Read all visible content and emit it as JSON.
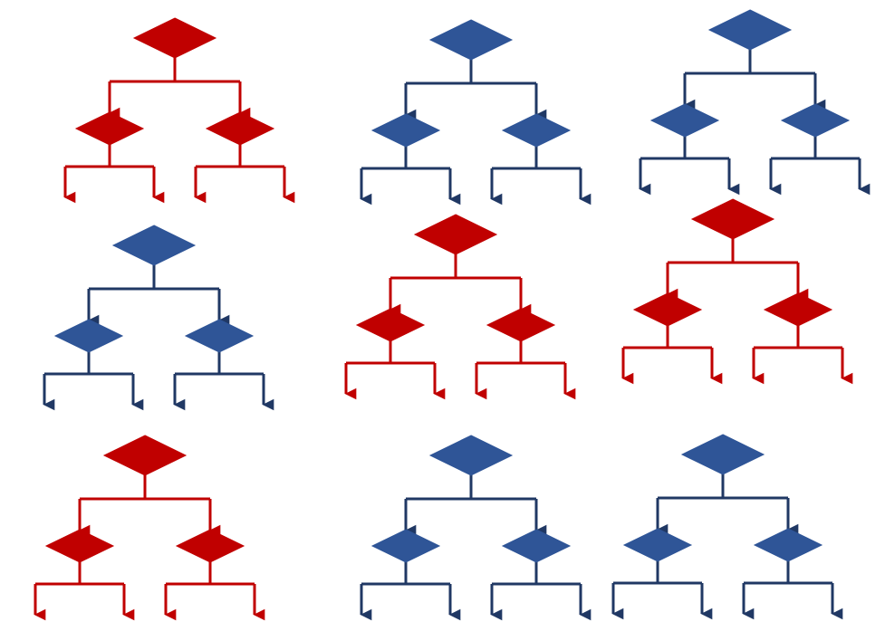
{
  "palette": {
    "red_fill": "#C00000",
    "red_line": "#C00000",
    "blue_fill": "#2F5597",
    "blue_line": "#203864"
  },
  "trees": [
    {
      "id": "tree-1",
      "color": "red"
    },
    {
      "id": "tree-2",
      "color": "blue"
    },
    {
      "id": "tree-3",
      "color": "blue"
    },
    {
      "id": "tree-4",
      "color": "blue"
    },
    {
      "id": "tree-5",
      "color": "red"
    },
    {
      "id": "tree-6",
      "color": "red"
    },
    {
      "id": "tree-7",
      "color": "red"
    },
    {
      "id": "tree-8",
      "color": "blue"
    },
    {
      "id": "tree-9",
      "color": "blue"
    }
  ]
}
